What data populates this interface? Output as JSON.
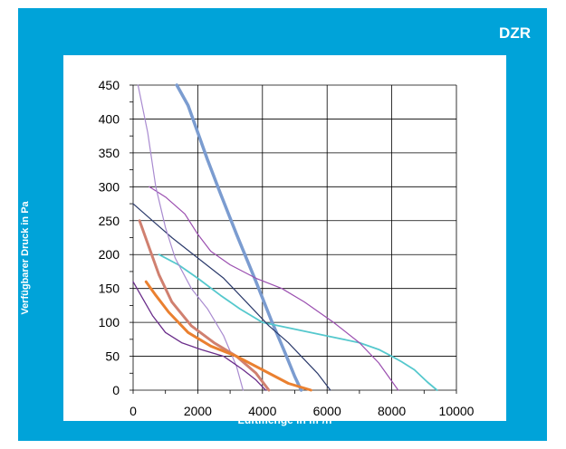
{
  "chart_data": {
    "type": "line",
    "title": "DZR",
    "xlabel": "Luftmenge in m³/h",
    "ylabel": "Verfügbarer Druck in Pa",
    "xlim": [
      0,
      10000
    ],
    "ylim": [
      0,
      450
    ],
    "xticks": [
      0,
      2000,
      4000,
      6000,
      8000,
      10000
    ],
    "yticks": [
      0,
      50,
      100,
      150,
      200,
      250,
      300,
      350,
      400,
      450
    ],
    "grid": true,
    "series": [
      {
        "color": "#7b9cd0",
        "width": 3.5,
        "x": [
          1350,
          1700,
          2000,
          2300,
          2700,
          3200,
          3800,
          4300,
          4700,
          5000,
          5200
        ],
        "y": [
          450,
          420,
          380,
          340,
          290,
          230,
          160,
          100,
          55,
          20,
          0
        ]
      },
      {
        "color": "#55c8cd",
        "width": 1.8,
        "x": [
          800,
          1400,
          2000,
          2700,
          3300,
          4000,
          5000,
          6000,
          7000,
          7600,
          8000,
          8300,
          8700,
          9100,
          9400
        ],
        "y": [
          200,
          185,
          165,
          140,
          120,
          100,
          90,
          80,
          70,
          60,
          50,
          42,
          30,
          12,
          0
        ]
      },
      {
        "color": "#2b3a6b",
        "width": 1.2,
        "x": [
          0,
          600,
          1200,
          2000,
          2800,
          3500,
          4200,
          4800,
          5300,
          5700,
          6100
        ],
        "y": [
          275,
          250,
          225,
          195,
          165,
          130,
          95,
          70,
          45,
          25,
          0
        ]
      },
      {
        "color": "#9b4fb0",
        "width": 1.2,
        "x": [
          500,
          1000,
          1600,
          2000,
          2400,
          3000,
          3800,
          4600,
          5300,
          6200,
          7000,
          7600,
          8200
        ],
        "y": [
          300,
          285,
          260,
          230,
          205,
          185,
          165,
          150,
          130,
          100,
          70,
          40,
          0
        ]
      },
      {
        "color": "#a98bd0",
        "width": 1.2,
        "x": [
          150,
          450,
          700,
          1000,
          1300,
          1800,
          2300,
          2800,
          3200,
          3400
        ],
        "y": [
          450,
          380,
          300,
          240,
          195,
          150,
          120,
          80,
          35,
          0
        ]
      },
      {
        "color": "#d08070",
        "width": 3,
        "x": [
          200,
          500,
          800,
          1200,
          1800,
          2500,
          3200,
          3800,
          4200
        ],
        "y": [
          250,
          210,
          170,
          130,
          95,
          70,
          50,
          25,
          0
        ]
      },
      {
        "color": "#ea8030",
        "width": 3,
        "x": [
          400,
          700,
          1100,
          1700,
          2400,
          3200,
          4000,
          4800,
          5500
        ],
        "y": [
          160,
          140,
          115,
          85,
          65,
          50,
          30,
          10,
          0
        ]
      },
      {
        "color": "#6a2d8a",
        "width": 1.3,
        "x": [
          0,
          300,
          600,
          1000,
          1500,
          2100,
          2800,
          3400,
          3800,
          4000,
          4100
        ],
        "y": [
          160,
          135,
          110,
          85,
          70,
          60,
          50,
          30,
          15,
          5,
          0
        ]
      }
    ]
  }
}
